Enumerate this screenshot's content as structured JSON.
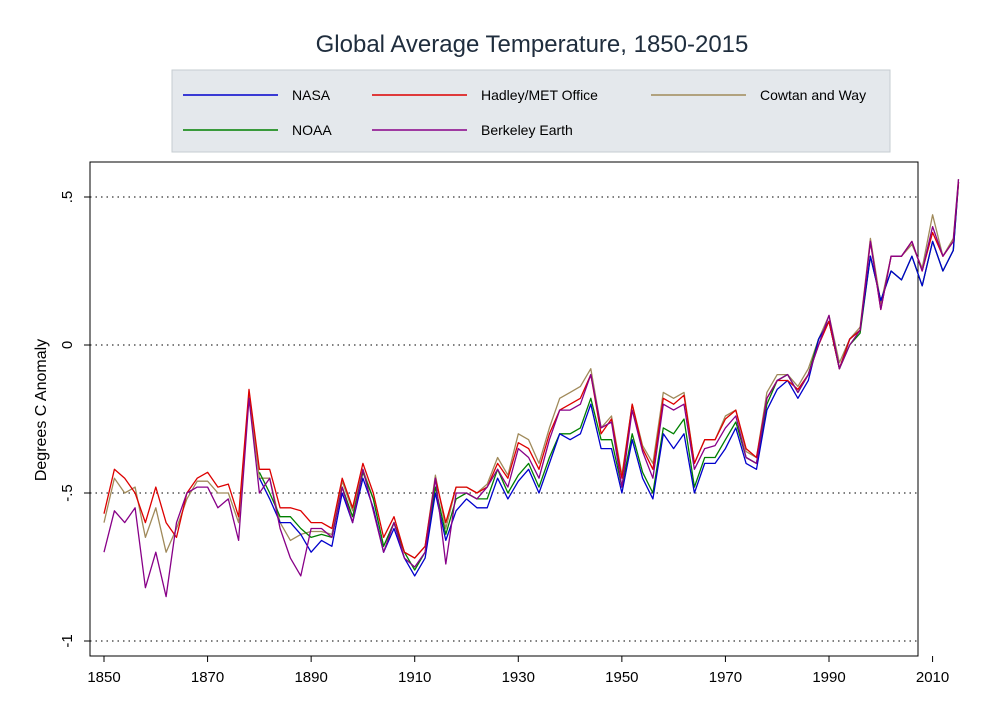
{
  "chart_data": {
    "type": "line",
    "title": "Global Average Temperature, 1850-2015",
    "xlabel": "",
    "ylabel": "Degrees C Anomaly",
    "xlim": [
      1850,
      2015
    ],
    "ylim": [
      -1,
      0.55
    ],
    "x_ticks": [
      "1850",
      "1870",
      "1890",
      "1910",
      "1930",
      "1950",
      "1970",
      "1990",
      "2010"
    ],
    "y_ticks": [
      "-1",
      "-.5",
      "0",
      ".5"
    ],
    "grid": "horizontal dotted at y ticks",
    "legend_position": "top",
    "series": [
      {
        "name": "NASA",
        "color": "#0000cc",
        "x": [
          1880,
          1882,
          1884,
          1886,
          1888,
          1890,
          1892,
          1894,
          1896,
          1898,
          1900,
          1902,
          1904,
          1906,
          1908,
          1910,
          1912,
          1914,
          1916,
          1918,
          1920,
          1922,
          1924,
          1926,
          1928,
          1930,
          1932,
          1934,
          1936,
          1938,
          1940,
          1942,
          1944,
          1946,
          1948,
          1950,
          1952,
          1954,
          1956,
          1958,
          1960,
          1962,
          1964,
          1966,
          1968,
          1970,
          1972,
          1974,
          1976,
          1978,
          1980,
          1982,
          1984,
          1986,
          1988,
          1990,
          1992,
          1994,
          1996,
          1998,
          2000,
          2002,
          2004,
          2006,
          2008,
          2010,
          2012,
          2014,
          2015
        ],
        "values": [
          -0.45,
          -0.52,
          -0.6,
          -0.6,
          -0.64,
          -0.7,
          -0.66,
          -0.68,
          -0.5,
          -0.6,
          -0.45,
          -0.55,
          -0.7,
          -0.62,
          -0.72,
          -0.78,
          -0.72,
          -0.5,
          -0.66,
          -0.56,
          -0.52,
          -0.55,
          -0.55,
          -0.45,
          -0.52,
          -0.46,
          -0.42,
          -0.5,
          -0.4,
          -0.3,
          -0.32,
          -0.3,
          -0.2,
          -0.35,
          -0.35,
          -0.5,
          -0.32,
          -0.45,
          -0.52,
          -0.3,
          -0.35,
          -0.3,
          -0.5,
          -0.4,
          -0.4,
          -0.35,
          -0.28,
          -0.4,
          -0.42,
          -0.22,
          -0.15,
          -0.12,
          -0.18,
          -0.12,
          0.02,
          0.08,
          -0.08,
          0.02,
          0.05,
          0.3,
          0.15,
          0.25,
          0.22,
          0.3,
          0.2,
          0.35,
          0.25,
          0.32,
          0.55
        ]
      },
      {
        "name": "NOAA",
        "color": "#008000",
        "x": [
          1880,
          1882,
          1884,
          1886,
          1888,
          1890,
          1892,
          1894,
          1896,
          1898,
          1900,
          1902,
          1904,
          1906,
          1908,
          1910,
          1912,
          1914,
          1916,
          1918,
          1920,
          1922,
          1924,
          1926,
          1928,
          1930,
          1932,
          1934,
          1936,
          1938,
          1940,
          1942,
          1944,
          1946,
          1948,
          1950,
          1952,
          1954,
          1956,
          1958,
          1960,
          1962,
          1964,
          1966,
          1968,
          1970,
          1972,
          1974,
          1976,
          1978,
          1980,
          1982,
          1984,
          1986,
          1988,
          1990,
          1992,
          1994,
          1996,
          1998,
          2000,
          2002,
          2004,
          2006,
          2008,
          2010,
          2012,
          2014,
          2015
        ],
        "values": [
          -0.43,
          -0.5,
          -0.58,
          -0.58,
          -0.62,
          -0.65,
          -0.64,
          -0.65,
          -0.48,
          -0.58,
          -0.43,
          -0.52,
          -0.68,
          -0.6,
          -0.7,
          -0.76,
          -0.7,
          -0.48,
          -0.64,
          -0.52,
          -0.5,
          -0.52,
          -0.52,
          -0.42,
          -0.5,
          -0.44,
          -0.4,
          -0.48,
          -0.38,
          -0.3,
          -0.3,
          -0.28,
          -0.18,
          -0.32,
          -0.32,
          -0.48,
          -0.3,
          -0.43,
          -0.5,
          -0.28,
          -0.3,
          -0.25,
          -0.48,
          -0.38,
          -0.38,
          -0.32,
          -0.26,
          -0.38,
          -0.4,
          -0.2,
          -0.12,
          -0.1,
          -0.16,
          -0.1,
          0.02,
          0.08,
          -0.08,
          0.0,
          0.04,
          0.3,
          0.15,
          0.25,
          0.22,
          0.3,
          0.2,
          0.35,
          0.25,
          0.32,
          0.55
        ]
      },
      {
        "name": "Hadley/MET Office",
        "color": "#dd0000",
        "x": [
          1850,
          1852,
          1854,
          1856,
          1858,
          1860,
          1862,
          1864,
          1866,
          1868,
          1870,
          1872,
          1874,
          1876,
          1878,
          1880,
          1882,
          1884,
          1886,
          1888,
          1890,
          1892,
          1894,
          1896,
          1898,
          1900,
          1902,
          1904,
          1906,
          1908,
          1910,
          1912,
          1914,
          1916,
          1918,
          1920,
          1922,
          1924,
          1926,
          1928,
          1930,
          1932,
          1934,
          1936,
          1938,
          1940,
          1942,
          1944,
          1946,
          1948,
          1950,
          1952,
          1954,
          1956,
          1958,
          1960,
          1962,
          1964,
          1966,
          1968,
          1970,
          1972,
          1974,
          1976,
          1978,
          1980,
          1982,
          1984,
          1986,
          1988,
          1990,
          1992,
          1994,
          1996,
          1998,
          2000,
          2002,
          2004,
          2006,
          2008,
          2010,
          2012,
          2014,
          2015
        ],
        "values": [
          -0.57,
          -0.42,
          -0.45,
          -0.5,
          -0.6,
          -0.48,
          -0.6,
          -0.65,
          -0.5,
          -0.45,
          -0.43,
          -0.48,
          -0.47,
          -0.58,
          -0.15,
          -0.42,
          -0.42,
          -0.55,
          -0.55,
          -0.56,
          -0.6,
          -0.6,
          -0.62,
          -0.45,
          -0.55,
          -0.4,
          -0.5,
          -0.65,
          -0.58,
          -0.7,
          -0.72,
          -0.68,
          -0.45,
          -0.6,
          -0.48,
          -0.48,
          -0.5,
          -0.48,
          -0.4,
          -0.45,
          -0.33,
          -0.35,
          -0.42,
          -0.3,
          -0.22,
          -0.2,
          -0.18,
          -0.1,
          -0.3,
          -0.25,
          -0.45,
          -0.2,
          -0.35,
          -0.42,
          -0.18,
          -0.2,
          -0.17,
          -0.4,
          -0.32,
          -0.32,
          -0.25,
          -0.22,
          -0.35,
          -0.38,
          -0.18,
          -0.12,
          -0.12,
          -0.15,
          -0.1,
          0.0,
          0.08,
          -0.08,
          0.02,
          0.05,
          0.35,
          0.12,
          0.3,
          0.3,
          0.35,
          0.25,
          0.38,
          0.3,
          0.35,
          0.55
        ]
      },
      {
        "name": "Berkeley Earth",
        "color": "#880088",
        "x": [
          1850,
          1852,
          1854,
          1856,
          1858,
          1860,
          1862,
          1864,
          1866,
          1868,
          1870,
          1872,
          1874,
          1876,
          1878,
          1880,
          1882,
          1884,
          1886,
          1888,
          1890,
          1892,
          1894,
          1896,
          1898,
          1900,
          1902,
          1904,
          1906,
          1908,
          1910,
          1912,
          1914,
          1916,
          1918,
          1920,
          1922,
          1924,
          1926,
          1928,
          1930,
          1932,
          1934,
          1936,
          1938,
          1940,
          1942,
          1944,
          1946,
          1948,
          1950,
          1952,
          1954,
          1956,
          1958,
          1960,
          1962,
          1964,
          1966,
          1968,
          1970,
          1972,
          1974,
          1976,
          1978,
          1980,
          1982,
          1984,
          1986,
          1988,
          1990,
          1992,
          1994,
          1996,
          1998,
          2000,
          2002,
          2004,
          2006,
          2008,
          2010,
          2012,
          2014,
          2015
        ],
        "values": [
          -0.7,
          -0.56,
          -0.6,
          -0.55,
          -0.82,
          -0.7,
          -0.85,
          -0.6,
          -0.5,
          -0.48,
          -0.48,
          -0.55,
          -0.52,
          -0.66,
          -0.18,
          -0.5,
          -0.45,
          -0.62,
          -0.72,
          -0.78,
          -0.62,
          -0.62,
          -0.65,
          -0.48,
          -0.6,
          -0.42,
          -0.56,
          -0.7,
          -0.6,
          -0.72,
          -0.75,
          -0.7,
          -0.45,
          -0.74,
          -0.5,
          -0.5,
          -0.52,
          -0.48,
          -0.42,
          -0.48,
          -0.35,
          -0.38,
          -0.45,
          -0.32,
          -0.22,
          -0.22,
          -0.2,
          -0.1,
          -0.28,
          -0.26,
          -0.48,
          -0.22,
          -0.36,
          -0.45,
          -0.2,
          -0.22,
          -0.2,
          -0.42,
          -0.35,
          -0.34,
          -0.28,
          -0.24,
          -0.38,
          -0.4,
          -0.18,
          -0.12,
          -0.1,
          -0.16,
          -0.1,
          0.0,
          0.1,
          -0.08,
          0.0,
          0.05,
          0.35,
          0.12,
          0.3,
          0.3,
          0.35,
          0.25,
          0.4,
          0.3,
          0.35,
          0.56
        ]
      },
      {
        "name": "Cowtan and Way",
        "color": "#a08a5a",
        "x": [
          1850,
          1852,
          1854,
          1856,
          1858,
          1860,
          1862,
          1864,
          1866,
          1868,
          1870,
          1872,
          1874,
          1876,
          1878,
          1880,
          1882,
          1884,
          1886,
          1888,
          1890,
          1892,
          1894,
          1896,
          1898,
          1900,
          1902,
          1904,
          1906,
          1908,
          1910,
          1912,
          1914,
          1916,
          1918,
          1920,
          1922,
          1924,
          1926,
          1928,
          1930,
          1932,
          1934,
          1936,
          1938,
          1940,
          1942,
          1944,
          1946,
          1948,
          1950,
          1952,
          1954,
          1956,
          1958,
          1960,
          1962,
          1964,
          1966,
          1968,
          1970,
          1972,
          1974,
          1976,
          1978,
          1980,
          1982,
          1984,
          1986,
          1988,
          1990,
          1992,
          1994,
          1996,
          1998,
          2000,
          2002,
          2004,
          2006,
          2008,
          2010,
          2012,
          2014,
          2015
        ],
        "values": [
          -0.6,
          -0.45,
          -0.5,
          -0.48,
          -0.65,
          -0.55,
          -0.7,
          -0.62,
          -0.52,
          -0.46,
          -0.46,
          -0.5,
          -0.5,
          -0.6,
          -0.17,
          -0.45,
          -0.45,
          -0.6,
          -0.66,
          -0.64,
          -0.63,
          -0.63,
          -0.64,
          -0.46,
          -0.56,
          -0.42,
          -0.52,
          -0.68,
          -0.6,
          -0.7,
          -0.72,
          -0.68,
          -0.44,
          -0.62,
          -0.48,
          -0.48,
          -0.5,
          -0.47,
          -0.38,
          -0.44,
          -0.3,
          -0.32,
          -0.4,
          -0.28,
          -0.18,
          -0.16,
          -0.14,
          -0.08,
          -0.28,
          -0.24,
          -0.44,
          -0.2,
          -0.34,
          -0.4,
          -0.16,
          -0.18,
          -0.16,
          -0.4,
          -0.32,
          -0.32,
          -0.24,
          -0.22,
          -0.36,
          -0.38,
          -0.16,
          -0.1,
          -0.1,
          -0.14,
          -0.08,
          0.02,
          0.1,
          -0.06,
          0.02,
          0.06,
          0.36,
          0.14,
          0.3,
          0.3,
          0.34,
          0.26,
          0.44,
          0.3,
          0.36,
          0.56
        ]
      }
    ]
  }
}
